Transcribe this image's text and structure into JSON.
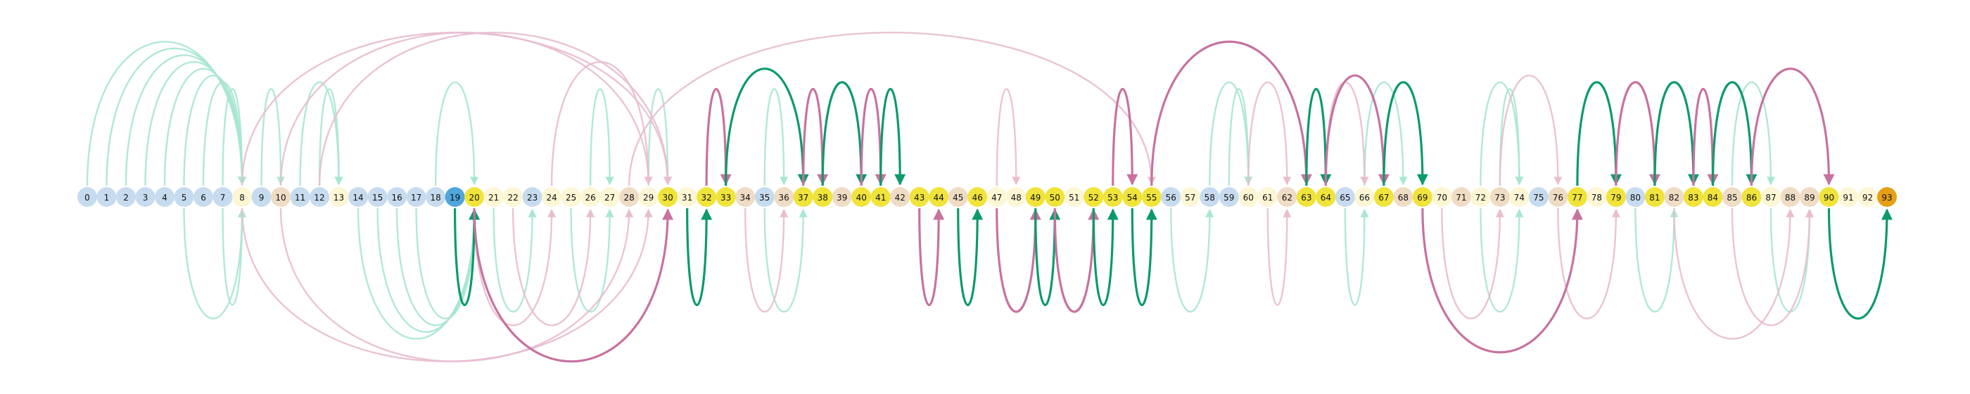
{
  "colors": {
    "background": "#ffffff",
    "node_light_blue": "#c6dbee",
    "node_cream": "#fcf6d5",
    "node_beige": "#efdcc4",
    "node_yellow": "#f0e33a",
    "node_blue": "#4fa5dc",
    "node_orange": "#e6a014",
    "arc_green": "#0c9a6c",
    "arc_magenta": "#c7729e",
    "arc_green_faint": "#a9e6d2",
    "arc_magenta_faint": "#e8bdd0"
  },
  "nodes": [
    {
      "label": "0",
      "color": "node_light_blue"
    },
    {
      "label": "1",
      "color": "node_light_blue"
    },
    {
      "label": "2",
      "color": "node_light_blue"
    },
    {
      "label": "3",
      "color": "node_light_blue"
    },
    {
      "label": "4",
      "color": "node_light_blue"
    },
    {
      "label": "5",
      "color": "node_light_blue"
    },
    {
      "label": "6",
      "color": "node_light_blue"
    },
    {
      "label": "7",
      "color": "node_light_blue"
    },
    {
      "label": "8",
      "color": "node_cream"
    },
    {
      "label": "9",
      "color": "node_light_blue"
    },
    {
      "label": "10",
      "color": "node_beige"
    },
    {
      "label": "11",
      "color": "node_light_blue"
    },
    {
      "label": "12",
      "color": "node_light_blue"
    },
    {
      "label": "13",
      "color": "node_cream"
    },
    {
      "label": "14",
      "color": "node_light_blue"
    },
    {
      "label": "15",
      "color": "node_light_blue"
    },
    {
      "label": "16",
      "color": "node_light_blue"
    },
    {
      "label": "17",
      "color": "node_light_blue"
    },
    {
      "label": "18",
      "color": "node_light_blue"
    },
    {
      "label": "19",
      "color": "node_blue"
    },
    {
      "label": "20",
      "color": "node_yellow"
    },
    {
      "label": "21",
      "color": "node_cream"
    },
    {
      "label": "22",
      "color": "node_cream"
    },
    {
      "label": "23",
      "color": "node_light_blue"
    },
    {
      "label": "24",
      "color": "node_cream"
    },
    {
      "label": "25",
      "color": "node_cream"
    },
    {
      "label": "26",
      "color": "node_cream"
    },
    {
      "label": "27",
      "color": "node_cream"
    },
    {
      "label": "28",
      "color": "node_beige"
    },
    {
      "label": "29",
      "color": "node_cream"
    },
    {
      "label": "30",
      "color": "node_yellow"
    },
    {
      "label": "31",
      "color": "node_cream"
    },
    {
      "label": "32",
      "color": "node_yellow"
    },
    {
      "label": "33",
      "color": "node_yellow"
    },
    {
      "label": "34",
      "color": "node_beige"
    },
    {
      "label": "35",
      "color": "node_light_blue"
    },
    {
      "label": "36",
      "color": "node_beige"
    },
    {
      "label": "37",
      "color": "node_yellow"
    },
    {
      "label": "38",
      "color": "node_yellow"
    },
    {
      "label": "39",
      "color": "node_beige"
    },
    {
      "label": "40",
      "color": "node_yellow"
    },
    {
      "label": "41",
      "color": "node_yellow"
    },
    {
      "label": "42",
      "color": "node_beige"
    },
    {
      "label": "43",
      "color": "node_yellow"
    },
    {
      "label": "44",
      "color": "node_yellow"
    },
    {
      "label": "45",
      "color": "node_beige"
    },
    {
      "label": "46",
      "color": "node_yellow"
    },
    {
      "label": "47",
      "color": "node_cream"
    },
    {
      "label": "48",
      "color": "node_cream"
    },
    {
      "label": "49",
      "color": "node_yellow"
    },
    {
      "label": "50",
      "color": "node_yellow"
    },
    {
      "label": "51",
      "color": "node_cream"
    },
    {
      "label": "52",
      "color": "node_yellow"
    },
    {
      "label": "53",
      "color": "node_yellow"
    },
    {
      "label": "54",
      "color": "node_yellow"
    },
    {
      "label": "55",
      "color": "node_yellow"
    },
    {
      "label": "56",
      "color": "node_light_blue"
    },
    {
      "label": "57",
      "color": "node_cream"
    },
    {
      "label": "58",
      "color": "node_light_blue"
    },
    {
      "label": "59",
      "color": "node_light_blue"
    },
    {
      "label": "60",
      "color": "node_cream"
    },
    {
      "label": "61",
      "color": "node_cream"
    },
    {
      "label": "62",
      "color": "node_beige"
    },
    {
      "label": "63",
      "color": "node_yellow"
    },
    {
      "label": "64",
      "color": "node_yellow"
    },
    {
      "label": "65",
      "color": "node_light_blue"
    },
    {
      "label": "66",
      "color": "node_cream"
    },
    {
      "label": "67",
      "color": "node_yellow"
    },
    {
      "label": "68",
      "color": "node_beige"
    },
    {
      "label": "69",
      "color": "node_yellow"
    },
    {
      "label": "70",
      "color": "node_cream"
    },
    {
      "label": "71",
      "color": "node_beige"
    },
    {
      "label": "72",
      "color": "node_cream"
    },
    {
      "label": "73",
      "color": "node_beige"
    },
    {
      "label": "74",
      "color": "node_cream"
    },
    {
      "label": "75",
      "color": "node_light_blue"
    },
    {
      "label": "76",
      "color": "node_beige"
    },
    {
      "label": "77",
      "color": "node_yellow"
    },
    {
      "label": "78",
      "color": "node_cream"
    },
    {
      "label": "79",
      "color": "node_yellow"
    },
    {
      "label": "80",
      "color": "node_light_blue"
    },
    {
      "label": "81",
      "color": "node_yellow"
    },
    {
      "label": "82",
      "color": "node_beige"
    },
    {
      "label": "83",
      "color": "node_yellow"
    },
    {
      "label": "84",
      "color": "node_yellow"
    },
    {
      "label": "85",
      "color": "node_beige"
    },
    {
      "label": "86",
      "color": "node_yellow"
    },
    {
      "label": "87",
      "color": "node_cream"
    },
    {
      "label": "88",
      "color": "node_beige"
    },
    {
      "label": "89",
      "color": "node_beige"
    },
    {
      "label": "90",
      "color": "node_yellow"
    },
    {
      "label": "91",
      "color": "node_cream"
    },
    {
      "label": "92",
      "color": "node_cream"
    },
    {
      "label": "93",
      "color": "node_orange"
    }
  ],
  "arcs": [
    {
      "from": 19,
      "to": 20,
      "side": "below",
      "color": "arc_green",
      "style": "strong"
    },
    {
      "from": 20,
      "to": 30,
      "side": "below",
      "color": "arc_magenta",
      "style": "strong"
    },
    {
      "from": 31,
      "to": 32,
      "side": "below",
      "color": "arc_green",
      "style": "strong"
    },
    {
      "from": 32,
      "to": 33,
      "side": "above",
      "color": "arc_magenta",
      "style": "strong"
    },
    {
      "from": 33,
      "to": 37,
      "side": "above",
      "color": "arc_green",
      "style": "strong"
    },
    {
      "from": 37,
      "to": 38,
      "side": "above",
      "color": "arc_magenta",
      "style": "strong"
    },
    {
      "from": 38,
      "to": 40,
      "side": "above",
      "color": "arc_green",
      "style": "strong"
    },
    {
      "from": 40,
      "to": 41,
      "side": "above",
      "color": "arc_magenta",
      "style": "strong"
    },
    {
      "from": 41,
      "to": 42,
      "side": "above",
      "color": "arc_green",
      "style": "strong"
    },
    {
      "from": 43,
      "to": 44,
      "side": "below",
      "color": "arc_magenta",
      "style": "strong"
    },
    {
      "from": 45,
      "to": 46,
      "side": "below",
      "color": "arc_green",
      "style": "strong"
    },
    {
      "from": 47,
      "to": 49,
      "side": "below",
      "color": "arc_magenta",
      "style": "strong"
    },
    {
      "from": 49,
      "to": 50,
      "side": "below",
      "color": "arc_green",
      "style": "strong"
    },
    {
      "from": 50,
      "to": 52,
      "side": "below",
      "color": "arc_magenta",
      "style": "strong"
    },
    {
      "from": 52,
      "to": 53,
      "side": "below",
      "color": "arc_green",
      "style": "strong"
    },
    {
      "from": 53,
      "to": 54,
      "side": "above",
      "color": "arc_magenta",
      "style": "strong"
    },
    {
      "from": 54,
      "to": 55,
      "side": "below",
      "color": "arc_green",
      "style": "strong"
    },
    {
      "from": 55,
      "to": 63,
      "side": "above",
      "color": "arc_magenta",
      "style": "strong"
    },
    {
      "from": 63,
      "to": 64,
      "side": "above",
      "color": "arc_green",
      "style": "strong"
    },
    {
      "from": 64,
      "to": 67,
      "side": "above",
      "color": "arc_magenta",
      "style": "strong"
    },
    {
      "from": 67,
      "to": 69,
      "side": "above",
      "color": "arc_green",
      "style": "strong"
    },
    {
      "from": 69,
      "to": 77,
      "side": "below",
      "color": "arc_magenta",
      "style": "strong"
    },
    {
      "from": 77,
      "to": 79,
      "side": "above",
      "color": "arc_green",
      "style": "strong"
    },
    {
      "from": 79,
      "to": 81,
      "side": "above",
      "color": "arc_magenta",
      "style": "strong"
    },
    {
      "from": 81,
      "to": 83,
      "side": "above",
      "color": "arc_green",
      "style": "strong"
    },
    {
      "from": 83,
      "to": 84,
      "side": "above",
      "color": "arc_magenta",
      "style": "strong"
    },
    {
      "from": 84,
      "to": 86,
      "side": "above",
      "color": "arc_green",
      "style": "strong"
    },
    {
      "from": 86,
      "to": 90,
      "side": "above",
      "color": "arc_magenta",
      "style": "strong"
    },
    {
      "from": 90,
      "to": 93,
      "side": "below",
      "color": "arc_green",
      "style": "strong"
    },
    {
      "from": 0,
      "to": 8,
      "side": "above",
      "color": "arc_green_faint",
      "style": "faint"
    },
    {
      "from": 1,
      "to": 8,
      "side": "above",
      "color": "arc_green_faint",
      "style": "faint"
    },
    {
      "from": 2,
      "to": 8,
      "side": "above",
      "color": "arc_green_faint",
      "style": "faint"
    },
    {
      "from": 3,
      "to": 8,
      "side": "above",
      "color": "arc_green_faint",
      "style": "faint"
    },
    {
      "from": 4,
      "to": 8,
      "side": "above",
      "color": "arc_green_faint",
      "style": "faint"
    },
    {
      "from": 5,
      "to": 8,
      "side": "above",
      "color": "arc_green_faint",
      "style": "faint"
    },
    {
      "from": 6,
      "to": 8,
      "side": "above",
      "color": "arc_green_faint",
      "style": "faint"
    },
    {
      "from": 7,
      "to": 8,
      "side": "above",
      "color": "arc_green_faint",
      "style": "faint"
    },
    {
      "from": 9,
      "to": 10,
      "side": "above",
      "color": "arc_green_faint",
      "style": "faint"
    },
    {
      "from": 11,
      "to": 13,
      "side": "above",
      "color": "arc_green_faint",
      "style": "faint"
    },
    {
      "from": 12,
      "to": 13,
      "side": "above",
      "color": "arc_green_faint",
      "style": "faint"
    },
    {
      "from": 18,
      "to": 20,
      "side": "above",
      "color": "arc_green_faint",
      "style": "faint"
    },
    {
      "from": 26,
      "to": 27,
      "side": "above",
      "color": "arc_green_faint",
      "style": "faint"
    },
    {
      "from": 29,
      "to": 30,
      "side": "above",
      "color": "arc_green_faint",
      "style": "faint"
    },
    {
      "from": 35,
      "to": 36,
      "side": "above",
      "color": "arc_green_faint",
      "style": "faint"
    },
    {
      "from": 59,
      "to": 60,
      "side": "above",
      "color": "arc_green_faint",
      "style": "faint"
    },
    {
      "from": 58,
      "to": 60,
      "side": "above",
      "color": "arc_green_faint",
      "style": "faint"
    },
    {
      "from": 66,
      "to": 68,
      "side": "above",
      "color": "arc_green_faint",
      "style": "faint"
    },
    {
      "from": 72,
      "to": 74,
      "side": "above",
      "color": "arc_green_faint",
      "style": "faint"
    },
    {
      "from": 73,
      "to": 74,
      "side": "above",
      "color": "arc_green_faint",
      "style": "faint"
    },
    {
      "from": 85,
      "to": 87,
      "side": "above",
      "color": "arc_green_faint",
      "style": "faint"
    },
    {
      "from": 8,
      "to": 30,
      "side": "above",
      "color": "arc_magenta_faint",
      "style": "faint"
    },
    {
      "from": 10,
      "to": 29,
      "side": "above",
      "color": "arc_magenta_faint",
      "style": "faint"
    },
    {
      "from": 12,
      "to": 30,
      "side": "above",
      "color": "arc_magenta_faint",
      "style": "faint"
    },
    {
      "from": 24,
      "to": 29,
      "side": "above",
      "color": "arc_magenta_faint",
      "style": "faint"
    },
    {
      "from": 28,
      "to": 55,
      "side": "above",
      "color": "arc_magenta_faint",
      "style": "faint"
    },
    {
      "from": 47,
      "to": 48,
      "side": "above",
      "color": "arc_magenta_faint",
      "style": "faint"
    },
    {
      "from": 60,
      "to": 62,
      "side": "above",
      "color": "arc_magenta_faint",
      "style": "faint"
    },
    {
      "from": 64,
      "to": 66,
      "side": "above",
      "color": "arc_magenta_faint",
      "style": "faint"
    },
    {
      "from": 73,
      "to": 76,
      "side": "above",
      "color": "arc_magenta_faint",
      "style": "faint"
    },
    {
      "from": 7,
      "to": 8,
      "side": "below",
      "color": "arc_green_faint",
      "style": "faint"
    },
    {
      "from": 5,
      "to": 8,
      "side": "below",
      "color": "arc_green_faint",
      "style": "faint"
    },
    {
      "from": 14,
      "to": 20,
      "side": "below",
      "color": "arc_green_faint",
      "style": "faint"
    },
    {
      "from": 15,
      "to": 20,
      "side": "below",
      "color": "arc_green_faint",
      "style": "faint"
    },
    {
      "from": 16,
      "to": 20,
      "side": "below",
      "color": "arc_green_faint",
      "style": "faint"
    },
    {
      "from": 17,
      "to": 20,
      "side": "below",
      "color": "arc_green_faint",
      "style": "faint"
    },
    {
      "from": 21,
      "to": 23,
      "side": "below",
      "color": "arc_green_faint",
      "style": "faint"
    },
    {
      "from": 25,
      "to": 27,
      "side": "below",
      "color": "arc_green_faint",
      "style": "faint"
    },
    {
      "from": 35,
      "to": 37,
      "side": "below",
      "color": "arc_green_faint",
      "style": "faint"
    },
    {
      "from": 56,
      "to": 58,
      "side": "below",
      "color": "arc_green_faint",
      "style": "faint"
    },
    {
      "from": 65,
      "to": 66,
      "side": "below",
      "color": "arc_green_faint",
      "style": "faint"
    },
    {
      "from": 72,
      "to": 74,
      "side": "below",
      "color": "arc_green_faint",
      "style": "faint"
    },
    {
      "from": 80,
      "to": 82,
      "side": "below",
      "color": "arc_green_faint",
      "style": "faint"
    },
    {
      "from": 87,
      "to": 89,
      "side": "below",
      "color": "arc_green_faint",
      "style": "faint"
    },
    {
      "from": 8,
      "to": 29,
      "side": "below",
      "color": "arc_magenta_faint",
      "style": "faint"
    },
    {
      "from": 10,
      "to": 28,
      "side": "below",
      "color": "arc_magenta_faint",
      "style": "faint"
    },
    {
      "from": 20,
      "to": 24,
      "side": "below",
      "color": "arc_magenta_faint",
      "style": "faint"
    },
    {
      "from": 22,
      "to": 26,
      "side": "below",
      "color": "arc_magenta_faint",
      "style": "faint"
    },
    {
      "from": 34,
      "to": 36,
      "side": "below",
      "color": "arc_magenta_faint",
      "style": "faint"
    },
    {
      "from": 61,
      "to": 62,
      "side": "below",
      "color": "arc_magenta_faint",
      "style": "faint"
    },
    {
      "from": 70,
      "to": 73,
      "side": "below",
      "color": "arc_magenta_faint",
      "style": "faint"
    },
    {
      "from": 76,
      "to": 79,
      "side": "below",
      "color": "arc_magenta_faint",
      "style": "faint"
    },
    {
      "from": 82,
      "to": 88,
      "side": "below",
      "color": "arc_magenta_faint",
      "style": "faint"
    },
    {
      "from": 85,
      "to": 89,
      "side": "below",
      "color": "arc_magenta_faint",
      "style": "faint"
    }
  ]
}
